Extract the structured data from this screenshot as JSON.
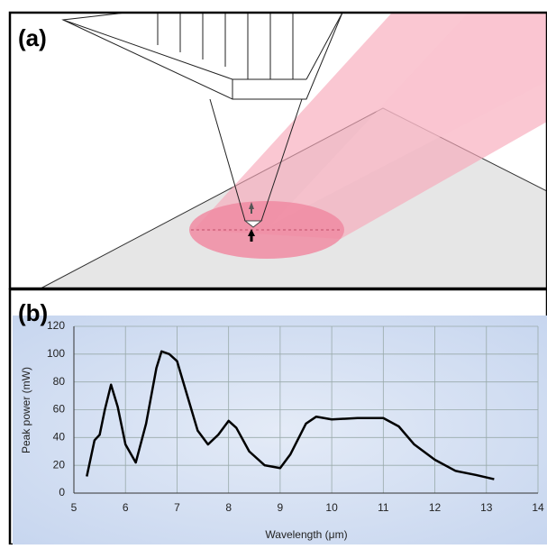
{
  "panels": {
    "a": "(a)",
    "b": "(b)"
  },
  "chart_data": {
    "type": "line",
    "xlabel": "Wavelength (μm)",
    "ylabel": "Peak power (mW)",
    "x": [
      5.25,
      5.4,
      5.5,
      5.6,
      5.72,
      5.85,
      6.0,
      6.2,
      6.4,
      6.6,
      6.7,
      6.85,
      7.0,
      7.2,
      7.4,
      7.6,
      7.8,
      8.0,
      8.15,
      8.4,
      8.7,
      9.0,
      9.2,
      9.5,
      9.7,
      10.0,
      10.5,
      11.0,
      11.3,
      11.6,
      12.0,
      12.4,
      12.8,
      13.15
    ],
    "series": [
      {
        "color": "#000000",
        "values": [
          12,
          38,
          42,
          60,
          78,
          62,
          35,
          22,
          50,
          90,
          102,
          100,
          95,
          70,
          45,
          35,
          42,
          52,
          47,
          30,
          20,
          18,
          28,
          50,
          55,
          53,
          54,
          54,
          48,
          35,
          24,
          16,
          13,
          10
        ]
      }
    ],
    "xlim": [
      5,
      14
    ],
    "xticks": [
      5,
      6,
      7,
      8,
      9,
      10,
      11,
      12,
      13,
      14
    ],
    "ylim": [
      0,
      120
    ],
    "yticks": [
      0,
      20,
      40,
      60,
      80,
      100,
      120
    ],
    "grid": true
  }
}
